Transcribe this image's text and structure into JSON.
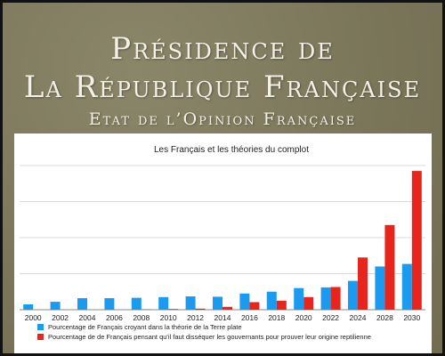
{
  "header": {
    "title_line1": "Présidence de",
    "title_line2": "La République Française",
    "subtitle": "Etat de l’Opinion Française"
  },
  "chart_data": {
    "type": "bar",
    "title": "Les Français et les théories du complot",
    "xlabel": "",
    "ylabel": "",
    "grid": true,
    "legend_position": "bottom",
    "categories": [
      "2000",
      "2002",
      "2004",
      "2006",
      "2008",
      "2010",
      "2012",
      "2014",
      "2016",
      "2018",
      "2020",
      "2022",
      "2024",
      "2028",
      "2030"
    ],
    "ylim": [
      0,
      40
    ],
    "series": [
      {
        "name": "Pourcentage de Français croyant dans la théorie de la Terre plate",
        "color": "#1a9bf0",
        "values": [
          1.5,
          2.2,
          3.2,
          3.2,
          3.3,
          3.5,
          3.7,
          3.6,
          4.5,
          5.0,
          6.0,
          6.2,
          8.0,
          12.0,
          12.7
        ]
      },
      {
        "name": "Pourcentage de de Français pensant qu'il faut disséquer les gouvernants pour prouver leur origine reptilienne",
        "color": "#e8251c",
        "values": [
          0,
          0,
          0,
          0,
          0.1,
          0.2,
          0.3,
          0.8,
          2.1,
          2.5,
          3.5,
          6.3,
          14.5,
          23.5,
          38.5
        ]
      }
    ]
  }
}
